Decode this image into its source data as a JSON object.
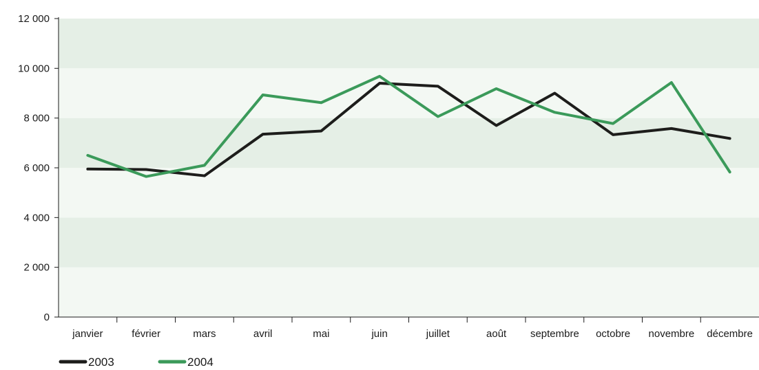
{
  "chart_data": {
    "type": "line",
    "categories": [
      "janvier",
      "février",
      "mars",
      "avril",
      "mai",
      "juin",
      "juillet",
      "août",
      "septembre",
      "octobre",
      "novembre",
      "décembre"
    ],
    "series": [
      {
        "name": "2003",
        "color": "#1d1d1b",
        "values": [
          5950,
          5930,
          5680,
          7350,
          7480,
          9400,
          9280,
          7700,
          9000,
          7330,
          7580,
          7180
        ]
      },
      {
        "name": "2004",
        "color": "#3b9a5a",
        "values": [
          6500,
          5650,
          6100,
          8930,
          8620,
          9680,
          8060,
          9180,
          8230,
          7780,
          9430,
          5830
        ]
      }
    ],
    "ylim": [
      0,
      12000
    ],
    "yticks": [
      0,
      2000,
      4000,
      6000,
      8000,
      10000,
      12000
    ],
    "ytick_labels": [
      "0",
      "2 000",
      "4 000",
      "6 000",
      "8 000",
      "10 000",
      "12 000"
    ],
    "grid": "alternating horizontal bands",
    "band_colors": [
      "#f3f8f3",
      "#e5efe6"
    ],
    "legend_position": "bottom-left",
    "title": "",
    "xlabel": "",
    "ylabel": ""
  }
}
